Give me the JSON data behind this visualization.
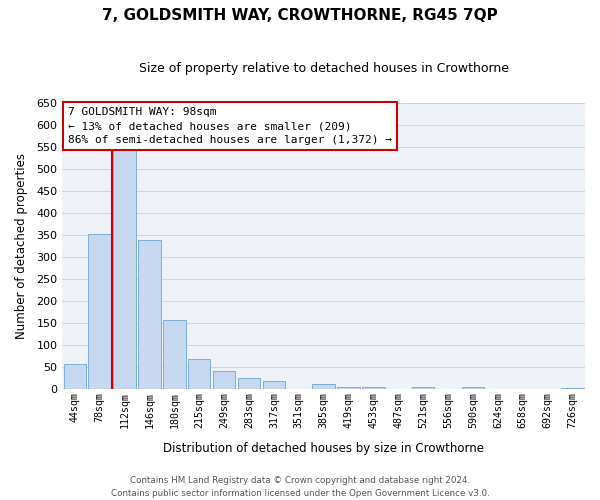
{
  "title": "7, GOLDSMITH WAY, CROWTHORNE, RG45 7QP",
  "subtitle": "Size of property relative to detached houses in Crowthorne",
  "xlabel": "Distribution of detached houses by size in Crowthorne",
  "ylabel": "Number of detached properties",
  "bar_labels": [
    "44sqm",
    "78sqm",
    "112sqm",
    "146sqm",
    "180sqm",
    "215sqm",
    "249sqm",
    "283sqm",
    "317sqm",
    "351sqm",
    "385sqm",
    "419sqm",
    "453sqm",
    "487sqm",
    "521sqm",
    "556sqm",
    "590sqm",
    "624sqm",
    "658sqm",
    "692sqm",
    "726sqm"
  ],
  "bar_values": [
    57,
    353,
    543,
    340,
    157,
    68,
    42,
    25,
    20,
    0,
    12,
    6,
    5,
    0,
    6,
    0,
    5,
    0,
    0,
    0,
    3
  ],
  "bar_color": "#c5d8ef",
  "bar_edge_color": "#7bafd4",
  "ylim": [
    0,
    650
  ],
  "yticks": [
    0,
    50,
    100,
    150,
    200,
    250,
    300,
    350,
    400,
    450,
    500,
    550,
    600,
    650
  ],
  "vline_color": "#cc0000",
  "vline_position": 1.5,
  "annotation_title": "7 GOLDSMITH WAY: 98sqm",
  "annotation_line1": "← 13% of detached houses are smaller (209)",
  "annotation_line2": "86% of semi-detached houses are larger (1,372) →",
  "annotation_box_color": "#cc0000",
  "footer_line1": "Contains HM Land Registry data © Crown copyright and database right 2024.",
  "footer_line2": "Contains public sector information licensed under the Open Government Licence v3.0.",
  "bg_color": "#eef2f8",
  "grid_color": "#ccd6e8"
}
